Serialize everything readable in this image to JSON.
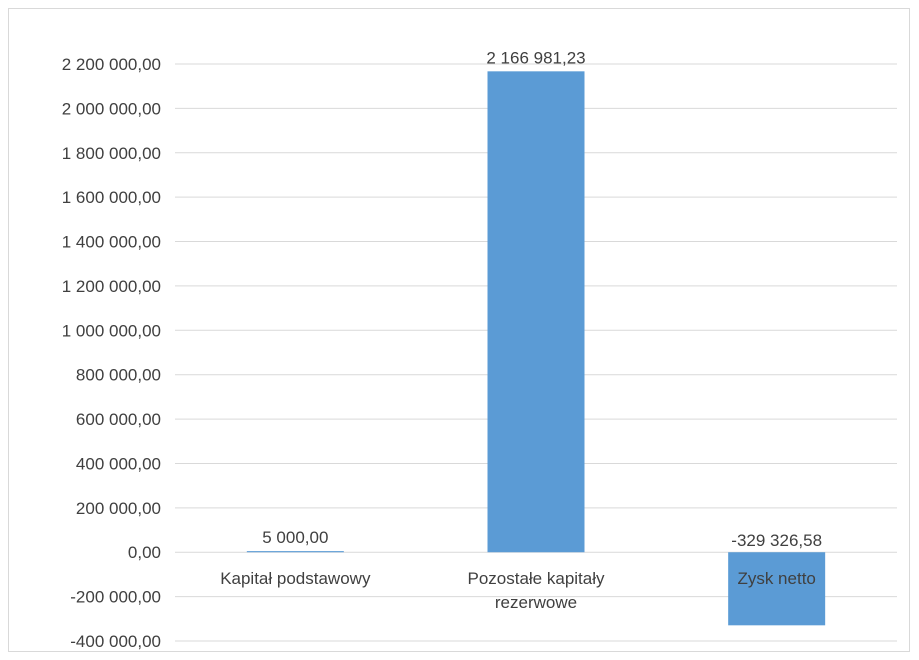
{
  "chart_data": {
    "type": "bar",
    "categories": [
      "Kapitał podstawowy",
      "Pozostałe kapitały rezerwowe",
      "Zysk netto"
    ],
    "category_label_lines": [
      [
        "Kapitał podstawowy"
      ],
      [
        "Pozostałe kapitały",
        "rezerwowe"
      ],
      [
        "Zysk netto"
      ]
    ],
    "values": [
      5000.0,
      2166981.23,
      -329326.58
    ],
    "data_labels": [
      "5 000,00",
      "2 166 981,23",
      "-329 326,58"
    ],
    "title": "",
    "xlabel": "",
    "ylabel": "",
    "ylim": [
      -400000,
      2200000
    ],
    "y_ticks": [
      2200000,
      2000000,
      1800000,
      1600000,
      1400000,
      1200000,
      1000000,
      800000,
      600000,
      400000,
      200000,
      0,
      -200000,
      -400000
    ],
    "y_tick_labels": [
      "2 200 000,00",
      "2 000 000,00",
      "1 800 000,00",
      "1 600 000,00",
      "1 400 000,00",
      "1 200 000,00",
      "1 000 000,00",
      "800 000,00",
      "600 000,00",
      "400 000,00",
      "200 000,00",
      "0,00",
      "-200 000,00",
      "-400 000,00"
    ],
    "grid": true,
    "legend": "none",
    "bar_color": "#5b9bd5",
    "grid_color": "#d9d9d9",
    "text_color": "#404040"
  }
}
